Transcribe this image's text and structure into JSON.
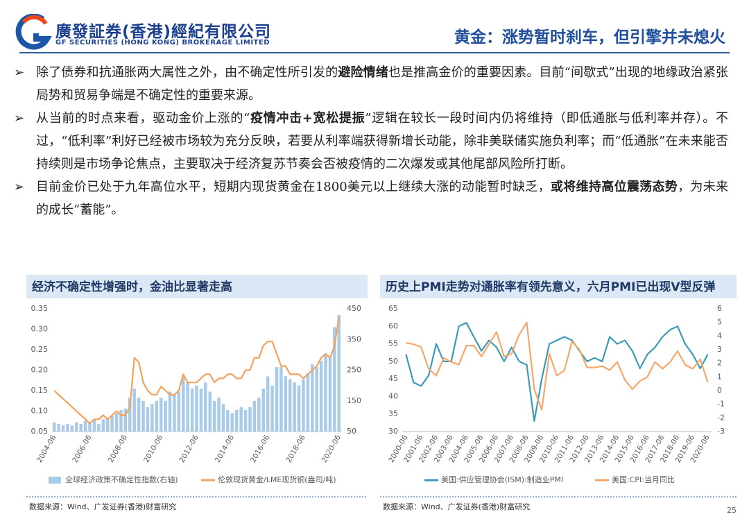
{
  "header": {
    "company": "廣發証券(香港)經紀有限公司",
    "company_en": "GF SECURITIES (HONG KONG) BROKERAGE LIMITED",
    "title": "黄金：涨势暂时刹车，但引擎并未熄火"
  },
  "bullets": [
    [
      {
        "text": "除了债券和抗通胀两大属性之外，由不确定性所引发的"
      },
      {
        "text": "避险情绪",
        "bold": true
      },
      {
        "text": "也是推高金价的重要因素。目前“间歇式”出现的地缘政治紧张局势和贸易争端是不确定性的重要来源。"
      }
    ],
    [
      {
        "text": "从当前的时点来看，驱动金价上涨的“"
      },
      {
        "text": "疫情冲击+宽松提振",
        "bold": true
      },
      {
        "text": "”逻辑在较长一段时间内仍将维持（即低通胀与低利率并存）。不过，“低利率”利好已经被市场较为充分反映，若要从利率端获得新增长动能，除非美联储实施负利率；而“低通胀”在未来能否持续则是市场争论焦点，主要取决于经济复苏节奏会否被疫情的二次爆发或其他尾部风险所打断。"
      }
    ],
    [
      {
        "text": "目前金价已处于九年高位水平，短期内现货黄金在1800美元以上继续大涨的动能暂时缺乏，"
      },
      {
        "text": "或将维持高位震荡态势",
        "bold": true
      },
      {
        "text": "，为未来的成长“蓄能”。"
      }
    ]
  ],
  "page_number": "25",
  "chart_data": [
    {
      "type": "combo",
      "title": "经济不确定性增强时，金油比显著走高",
      "categories": [
        "2004-06",
        null,
        null,
        null,
        null,
        null,
        null,
        null,
        "2006-06",
        null,
        null,
        null,
        null,
        null,
        null,
        null,
        "2008-06",
        null,
        null,
        null,
        null,
        null,
        null,
        null,
        "2010-06",
        null,
        null,
        null,
        null,
        null,
        null,
        null,
        "2012-06",
        null,
        null,
        null,
        null,
        null,
        null,
        null,
        "2014-06",
        null,
        null,
        null,
        null,
        null,
        null,
        null,
        "2016-06",
        null,
        null,
        null,
        null,
        null,
        null,
        null,
        "2018-06",
        null,
        null,
        null,
        null,
        null,
        null,
        null,
        "2020-06"
      ],
      "ylim": [
        0.05,
        0.35
      ],
      "yticks": [
        {
          "value": 0.05,
          "label": "0.05"
        },
        {
          "value": 0.1,
          "label": "0.10"
        },
        {
          "value": 0.15,
          "label": "0.15"
        },
        {
          "value": 0.2,
          "label": "0.20"
        },
        {
          "value": 0.25,
          "label": "0.25"
        },
        {
          "value": 0.3,
          "label": "0.30"
        },
        {
          "value": 0.35,
          "label": "0.35"
        }
      ],
      "y2lim": [
        50,
        450
      ],
      "y2ticks": [
        50,
        150,
        250,
        350,
        450
      ],
      "series": [
        {
          "name": "全球经济政策不确定性指数(右轴)",
          "type": "bar",
          "axis": "y2",
          "color": "#a9cbe8",
          "values": [
            80,
            75,
            70,
            75,
            70,
            80,
            75,
            85,
            80,
            90,
            75,
            90,
            95,
            100,
            110,
            120,
            125,
            160,
            190,
            160,
            150,
            130,
            140,
            150,
            160,
            150,
            180,
            170,
            180,
            230,
            210,
            190,
            200,
            190,
            210,
            180,
            150,
            160,
            140,
            120,
            110,
            120,
            130,
            120,
            130,
            150,
            160,
            190,
            230,
            200,
            260,
            260,
            230,
            220,
            210,
            200,
            220,
            240,
            270,
            260,
            280,
            300,
            290,
            390,
            430
          ]
        },
        {
          "name": "伦敦现货黄金/LME现货铜(盎司/吨)",
          "type": "line",
          "color": "#f2a25a",
          "values": [
            0.15,
            0.14,
            0.13,
            0.12,
            0.11,
            0.1,
            0.09,
            0.08,
            0.07,
            0.08,
            0.08,
            0.09,
            0.08,
            0.09,
            0.1,
            0.09,
            0.09,
            0.11,
            0.23,
            0.22,
            0.17,
            0.15,
            0.14,
            0.14,
            0.16,
            0.15,
            0.14,
            0.14,
            0.15,
            0.19,
            0.17,
            0.17,
            0.17,
            0.18,
            0.19,
            0.19,
            0.17,
            0.18,
            0.18,
            0.19,
            0.19,
            0.18,
            0.18,
            0.2,
            0.2,
            0.23,
            0.23,
            0.26,
            0.27,
            0.27,
            0.24,
            0.21,
            0.21,
            0.19,
            0.19,
            0.19,
            0.18,
            0.19,
            0.2,
            0.21,
            0.23,
            0.24,
            0.23,
            0.26,
            0.33
          ]
        }
      ],
      "source": "数据来源：Wind、广发证券(香港)财富研究"
    },
    {
      "type": "line",
      "title": "历史上PMI走势对通胀率有领先意义，六月PMI已出现V型反弹",
      "categories": [
        "2000-06",
        null,
        "2001-06",
        null,
        "2002-06",
        null,
        "2003-06",
        null,
        "2004-06",
        null,
        "2005-06",
        null,
        "2006-06",
        null,
        "2007-06",
        null,
        "2008-06",
        null,
        "2009-06",
        null,
        "2010-06",
        null,
        "2011-06",
        null,
        "2012-06",
        null,
        "2013-06",
        null,
        "2014-06",
        null,
        "2015-06",
        null,
        "2016-06",
        null,
        "2017-06",
        null,
        "2018-06",
        null,
        "2019-06",
        null,
        "2020-06"
      ],
      "ylim": [
        30,
        65
      ],
      "yticks": [
        30,
        35,
        40,
        45,
        50,
        55,
        60,
        65
      ],
      "y2lim": [
        -3,
        6
      ],
      "y2ticks": [
        -3,
        -2,
        -1,
        0,
        1,
        2,
        3,
        4,
        5,
        6
      ],
      "series": [
        {
          "name": "美国:供应管理协会(ISM):制造业PMI",
          "color": "#3a9bb8",
          "values": [
            52,
            44,
            43,
            46,
            55,
            50,
            50,
            60,
            61,
            57,
            53,
            56,
            54,
            50,
            54,
            50,
            49,
            33,
            45,
            55,
            56,
            57,
            56,
            53,
            50,
            51,
            50,
            57,
            55,
            56,
            53,
            48,
            52,
            54,
            57,
            59,
            60,
            55,
            52,
            48,
            52
          ]
        },
        {
          "name": "美国:CPI:当月同比",
          "color": "#f4a768",
          "axis": "y2",
          "values": [
            3.5,
            3.4,
            3.2,
            1.6,
            1.1,
            2.4,
            2.1,
            1.9,
            3.3,
            3.3,
            2.5,
            3.4,
            4.3,
            2.5,
            2.7,
            4.1,
            5.0,
            0.1,
            -1.4,
            2.7,
            1.1,
            1.5,
            3.6,
            3.0,
            1.7,
            1.7,
            1.8,
            1.5,
            2.1,
            0.8,
            0.1,
            0.7,
            1.0,
            2.1,
            1.6,
            2.1,
            2.9,
            1.9,
            1.6,
            2.3,
            0.6
          ]
        }
      ],
      "source": "数据来源：Wind、广发证券(香港)财富研究"
    }
  ]
}
